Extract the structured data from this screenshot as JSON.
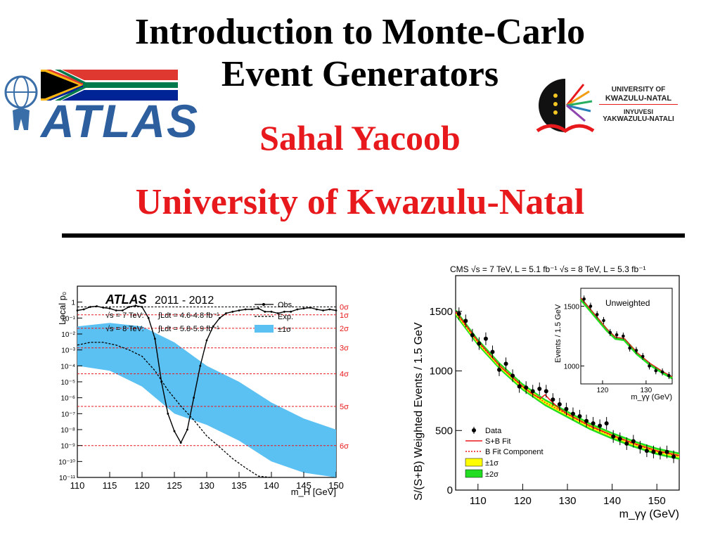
{
  "slide": {
    "title_line1": "Introduction to Monte-Carlo",
    "title_line2": "Event Generators",
    "author": "Sahal Yacoob",
    "institution": "University of Kwazulu-Natal"
  },
  "logos": {
    "atlas_text": "ATLAS",
    "ukzn_line1": "UNIVERSITY OF",
    "ukzn_line2": "KWAZULU-NATAL",
    "ukzn_line3": "INYUVESI",
    "ukzn_line4": "YAKWAZULU-NATALI"
  },
  "chart_data": [
    {
      "type": "line",
      "experiment": "ATLAS",
      "years": "2011 - 2012",
      "energy1": "√s = 7 TeV:",
      "lumi1": "∫Ldt = 4.6-4.8 fb⁻¹",
      "energy2": "√s = 8 TeV:",
      "lumi2": "∫Ldt = 5.8-5.9 fb⁻¹",
      "xlabel": "m_H [GeV]",
      "ylabel": "Local p₀",
      "log_y": true,
      "xlim": [
        110,
        150
      ],
      "ylim": [
        1e-11,
        10
      ],
      "x_ticks": [
        110,
        115,
        120,
        125,
        130,
        135,
        140,
        145,
        150
      ],
      "y_ticks": [
        {
          "v": 1,
          "label": "1"
        },
        {
          "v": 0.1,
          "label": "10⁻¹"
        },
        {
          "v": 0.01,
          "label": "10⁻²"
        },
        {
          "v": 0.001,
          "label": "10⁻³"
        },
        {
          "v": 0.0001,
          "label": "10⁻⁴"
        },
        {
          "v": 1e-05,
          "label": "10⁻⁵"
        },
        {
          "v": 1e-06,
          "label": "10⁻⁶"
        },
        {
          "v": 1e-07,
          "label": "10⁻⁷"
        },
        {
          "v": 1e-08,
          "label": "10⁻⁸"
        },
        {
          "v": 1e-09,
          "label": "10⁻⁹"
        },
        {
          "v": 1e-10,
          "label": "10⁻¹⁰"
        },
        {
          "v": 1e-11,
          "label": "10⁻¹¹"
        }
      ],
      "sigma_lines": [
        {
          "label": "0σ",
          "v": 0.5
        },
        {
          "label": "1σ",
          "v": 0.1587
        },
        {
          "label": "2σ",
          "v": 0.02275
        },
        {
          "label": "3σ",
          "v": 0.00135
        },
        {
          "label": "4σ",
          "v": 3.17e-05
        },
        {
          "label": "5σ",
          "v": 2.87e-07
        },
        {
          "label": "6σ",
          "v": 9.87e-10
        }
      ],
      "legend": [
        {
          "label": "Obs."
        },
        {
          "label": "Exp."
        },
        {
          "label": "±1σ"
        }
      ],
      "band_color": "#5bc0f2",
      "series": [
        {
          "name": "Obs.",
          "x": [
            110,
            111,
            112,
            113,
            114,
            115,
            116,
            117,
            118,
            119,
            120,
            121,
            122,
            123,
            124,
            125,
            126,
            127,
            128,
            129,
            130,
            131,
            132,
            133,
            134,
            135,
            136,
            137,
            138,
            139,
            140,
            141,
            142,
            143,
            144,
            145,
            146,
            147,
            148,
            149,
            150
          ],
          "y": [
            0.3,
            0.35,
            0.5,
            0.55,
            0.45,
            0.4,
            0.3,
            0.3,
            0.5,
            0.6,
            0.5,
            0.1,
            0.005,
            1e-05,
            1e-07,
            8e-09,
            1.5e-09,
            1e-08,
            1e-06,
            0.0001,
            0.004,
            0.03,
            0.1,
            0.2,
            0.25,
            0.3,
            0.35,
            0.35,
            0.4,
            0.25,
            0.25,
            0.2,
            0.25,
            0.25,
            0.35,
            0.4,
            0.45,
            0.35,
            0.3,
            0.35,
            0.3
          ]
        },
        {
          "name": "Exp.",
          "x": [
            110,
            112,
            114,
            116,
            118,
            120,
            122,
            124,
            126,
            128,
            130,
            132,
            134,
            136,
            138,
            140
          ],
          "y": [
            0.002,
            0.003,
            0.003,
            0.002,
            0.001,
            0.0004,
            5e-05,
            3e-06,
            3e-07,
            4e-08,
            4e-09,
            8e-10,
            1.5e-10,
            4e-11,
            1.2e-11,
            3e-12
          ]
        }
      ],
      "band": {
        "x": [
          110,
          115,
          120,
          125,
          130,
          135,
          140,
          145,
          150
        ],
        "lower": [
          0.0001,
          5e-05,
          5e-06,
          1e-07,
          2e-08,
          2e-09,
          1e-10,
          2e-11,
          5e-12
        ],
        "upper": [
          0.03,
          0.05,
          0.03,
          0.003,
          0.0001,
          1e-05,
          5e-07,
          5e-08,
          1e-08
        ]
      }
    },
    {
      "type": "scatter",
      "header": "CMS  √s = 7 TeV, L = 5.1 fb⁻¹ √s = 8 TeV, L = 5.3 fb⁻¹",
      "xlabel": "m_γγ (GeV)",
      "ylabel": "S/(S+B) Weighted Events / 1.5 GeV",
      "xlim": [
        105,
        155
      ],
      "ylim": [
        0,
        1800
      ],
      "x_ticks": [
        110,
        120,
        130,
        140,
        150
      ],
      "y_ticks": [
        0,
        500,
        1000,
        1500
      ],
      "legend": [
        {
          "label": "Data"
        },
        {
          "label": "S+B Fit"
        },
        {
          "label": "B Fit Component"
        },
        {
          "label": "±1σ",
          "color": "#ffff00"
        },
        {
          "label": "±2σ",
          "color": "#22dd22"
        }
      ],
      "data_points": {
        "x": [
          105.75,
          107.25,
          108.75,
          110.25,
          111.75,
          113.25,
          114.75,
          116.25,
          117.75,
          119.25,
          120.75,
          122.25,
          123.75,
          125.25,
          126.75,
          128.25,
          129.75,
          131.25,
          132.75,
          134.25,
          135.75,
          137.25,
          138.75,
          140.25,
          141.75,
          143.25,
          144.75,
          146.25,
          147.75,
          149.25,
          150.75,
          152.25,
          153.75
        ],
        "y": [
          1480,
          1420,
          1300,
          1230,
          1270,
          1160,
          1010,
          1060,
          960,
          870,
          860,
          830,
          850,
          830,
          760,
          720,
          680,
          640,
          620,
          580,
          560,
          540,
          560,
          450,
          430,
          390,
          410,
          360,
          330,
          320,
          310,
          320,
          280
        ]
      },
      "sb_fit": {
        "x": [
          105,
          110,
          115,
          120,
          122,
          124,
          125,
          126,
          128,
          130,
          135,
          140,
          145,
          150,
          155
        ],
        "y": [
          1500,
          1250,
          1040,
          870,
          810,
          770,
          800,
          760,
          690,
          640,
          540,
          460,
          390,
          330,
          290
        ]
      },
      "b_fit": {
        "x": [
          105,
          110,
          115,
          120,
          125,
          130,
          135,
          140,
          145,
          150,
          155
        ],
        "y": [
          1490,
          1240,
          1035,
          865,
          735,
          635,
          535,
          455,
          385,
          325,
          285
        ]
      },
      "inset": {
        "title": "Unweighted",
        "xlabel": "m_γγ (GeV)",
        "ylabel": "Events / 1.5 GeV",
        "xlim": [
          115,
          136
        ],
        "ylim": [
          850,
          1650
        ],
        "x_ticks": [
          120,
          130
        ],
        "y_ticks": [
          1000,
          1500
        ],
        "data_points": {
          "x": [
            115.75,
            117.25,
            118.75,
            120.25,
            121.75,
            123.25,
            124.75,
            126.25,
            127.75,
            129.25,
            130.75,
            132.25,
            133.75,
            135.25
          ],
          "y": [
            1560,
            1500,
            1430,
            1380,
            1280,
            1260,
            1250,
            1150,
            1130,
            1080,
            1000,
            960,
            950,
            920
          ]
        },
        "sb_fit": {
          "x": [
            115,
            118,
            121,
            123,
            125,
            126,
            128,
            131,
            134,
            136
          ],
          "y": [
            1570,
            1440,
            1310,
            1240,
            1230,
            1190,
            1110,
            1020,
            950,
            910
          ]
        }
      }
    }
  ]
}
